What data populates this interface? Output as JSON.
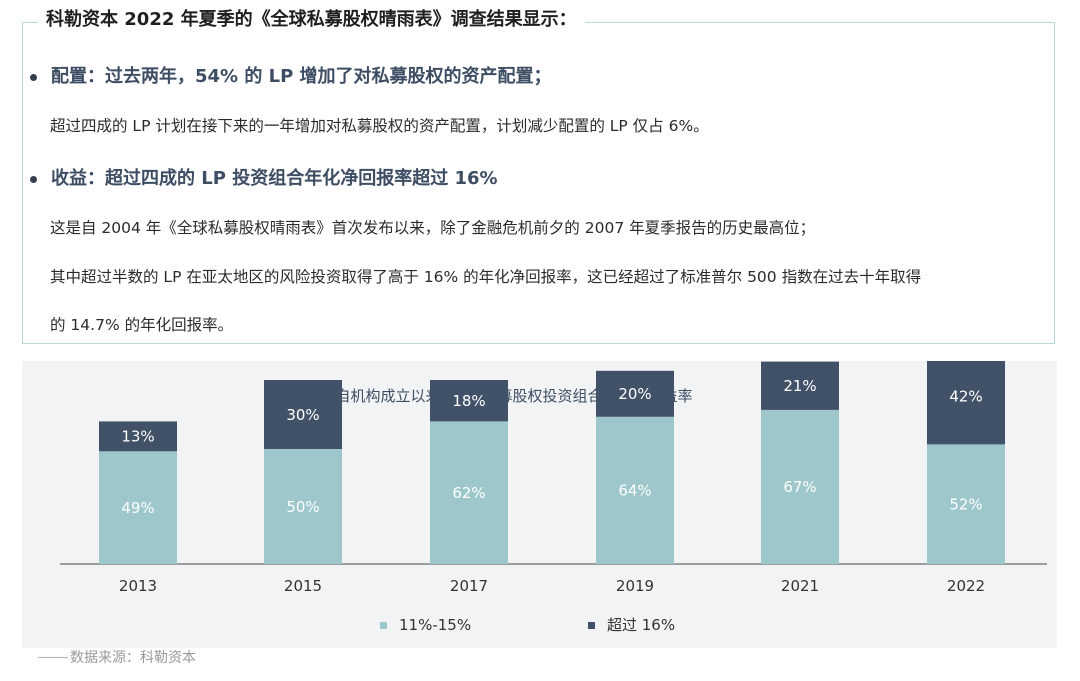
{
  "summary": {
    "title": "科勒资本 2022 年夏季的《全球私募股权晴雨表》调查结果显示：",
    "bullets": [
      {
        "heading": "配置：过去两年，54% 的 LP 增加了对私募股权的资产配置；",
        "paragraphs": [
          "超过四成的 LP 计划在接下来的一年增加对私募股权的资产配置，计划减少配置的 LP 仅占 6%。"
        ]
      },
      {
        "heading": "收益：超过四成的 LP 投资组合年化净回报率超过 16%",
        "paragraphs": [
          "这是自 2004 年《全球私募股权晴雨表》首次发布以来，除了金融危机前夕的 2007 年夏季报告的历史最高位；",
          "其中超过半数的 LP 在亚太地区的风险投资取得了高于 16% 的年化净回报率，这已经超过了标准普尔 500 指数在过去十年取得",
          "的 14.7% 的年化回报率。"
        ]
      }
    ]
  },
  "chart_data": {
    "type": "bar",
    "stacked": true,
    "title": "自机构成立以来 LP 的私募股权投资组合的年化收益率",
    "categories": [
      "2013",
      "2015",
      "2017",
      "2019",
      "2021",
      "2022"
    ],
    "series": [
      {
        "name": "11%-15%",
        "values": [
          49,
          50,
          62,
          64,
          67,
          52
        ],
        "labels": [
          "49%",
          "50%",
          "62%",
          "64%",
          "67%",
          "52%"
        ],
        "color": "#9dc7cb"
      },
      {
        "name": "超过 16%",
        "values": [
          13,
          30,
          18,
          20,
          21,
          42
        ],
        "labels": [
          "13%",
          "30%",
          "18%",
          "20%",
          "21%",
          "42%"
        ],
        "color": "#415268"
      }
    ],
    "ylim": [
      0,
      100
    ],
    "legend_position": "bottom",
    "grid": false
  },
  "source": "数据来源：科勒资本",
  "colors": {
    "heading": "#3d4d63",
    "border": "#b7d8d3",
    "panel_bg": "#f2f3f4"
  }
}
